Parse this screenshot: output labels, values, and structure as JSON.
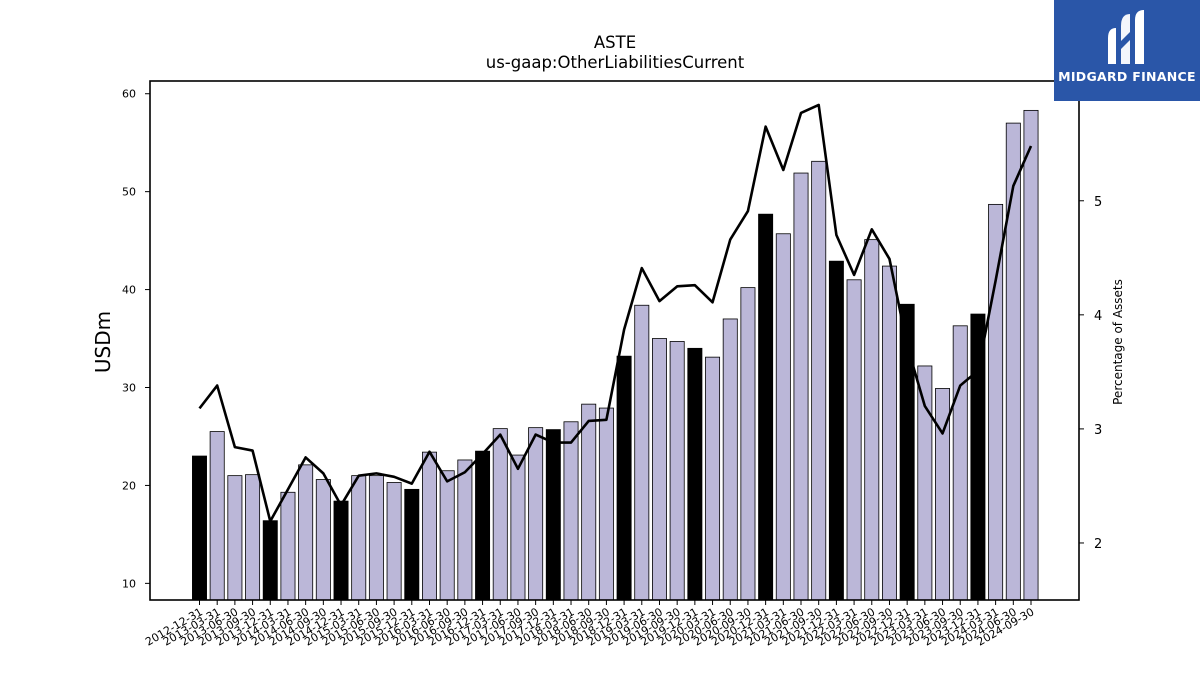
{
  "brand": {
    "name": "MIDGARD FINANCE",
    "color": "#2a56a8"
  },
  "chart_data": {
    "type": "bar",
    "title": "ASTE",
    "subtitle": "us-gaap:OtherLiabilitiesCurrent",
    "ylabel": "USDm",
    "y2label": "Percentage of Assets",
    "ylim": [
      8.3,
      61.3
    ],
    "y2lim": [
      1.5,
      6.05
    ],
    "yticks": [
      10,
      20,
      30,
      40,
      50,
      60
    ],
    "y2ticks": [
      2,
      3,
      4,
      5
    ],
    "categories": [
      "2012-12-31",
      "2013-03-31",
      "2013-06-30",
      "2013-09-30",
      "2013-12-31",
      "2014-03-31",
      "2014-06-30",
      "2014-09-30",
      "2014-12-31",
      "2015-03-31",
      "2015-06-30",
      "2015-09-30",
      "2015-12-31",
      "2016-03-31",
      "2016-06-30",
      "2016-09-30",
      "2016-12-31",
      "2017-03-31",
      "2017-06-30",
      "2017-09-30",
      "2017-12-31",
      "2018-03-31",
      "2018-06-30",
      "2018-09-30",
      "2018-12-31",
      "2019-03-31",
      "2019-06-30",
      "2019-09-30",
      "2019-12-31",
      "2020-03-31",
      "2020-06-30",
      "2020-09-30",
      "2020-12-31",
      "2021-03-31",
      "2021-06-30",
      "2021-09-30",
      "2021-12-31",
      "2022-03-31",
      "2022-06-30",
      "2022-09-30",
      "2022-12-31",
      "2023-03-31",
      "2023-06-30",
      "2023-09-30",
      "2023-12-31",
      "2024-03-31",
      "2024-06-30",
      "2024-09-30"
    ],
    "series": [
      {
        "name": "",
        "axis": "left",
        "type": "bar",
        "values": [
          23.0,
          25.5,
          21.0,
          21.1,
          16.4,
          19.3,
          22.1,
          20.6,
          18.4,
          21.0,
          21.0,
          20.3,
          19.6,
          23.4,
          21.5,
          22.6,
          23.5,
          25.8,
          23.1,
          25.9,
          25.7,
          26.5,
          28.3,
          27.9,
          33.2,
          38.4,
          35.0,
          34.7,
          34.0,
          33.1,
          37.0,
          40.2,
          47.7,
          45.7,
          51.9,
          53.1,
          42.9,
          41.0,
          45.1,
          42.4,
          38.5,
          32.2,
          29.9,
          36.3,
          37.5,
          48.7,
          57.0,
          58.3
        ],
        "colors": {
          "fiscal_year_end": "#000000",
          "quarter": "#bbb7d8"
        }
      },
      {
        "name": "",
        "axis": "right",
        "type": "line",
        "color": "#000000",
        "values": [
          3.18,
          3.38,
          2.84,
          2.81,
          2.19,
          2.47,
          2.75,
          2.61,
          2.33,
          2.59,
          2.61,
          2.58,
          2.52,
          2.8,
          2.54,
          2.62,
          2.78,
          2.95,
          2.65,
          2.95,
          2.88,
          2.88,
          3.07,
          3.08,
          3.87,
          4.41,
          4.12,
          4.25,
          4.26,
          4.11,
          4.66,
          4.91,
          5.65,
          5.27,
          5.77,
          5.84,
          4.7,
          4.35,
          4.75,
          4.49,
          3.73,
          3.2,
          2.96,
          3.38,
          3.51,
          4.3,
          5.13,
          5.48
        ]
      }
    ],
    "grid": false,
    "legend": "none"
  }
}
